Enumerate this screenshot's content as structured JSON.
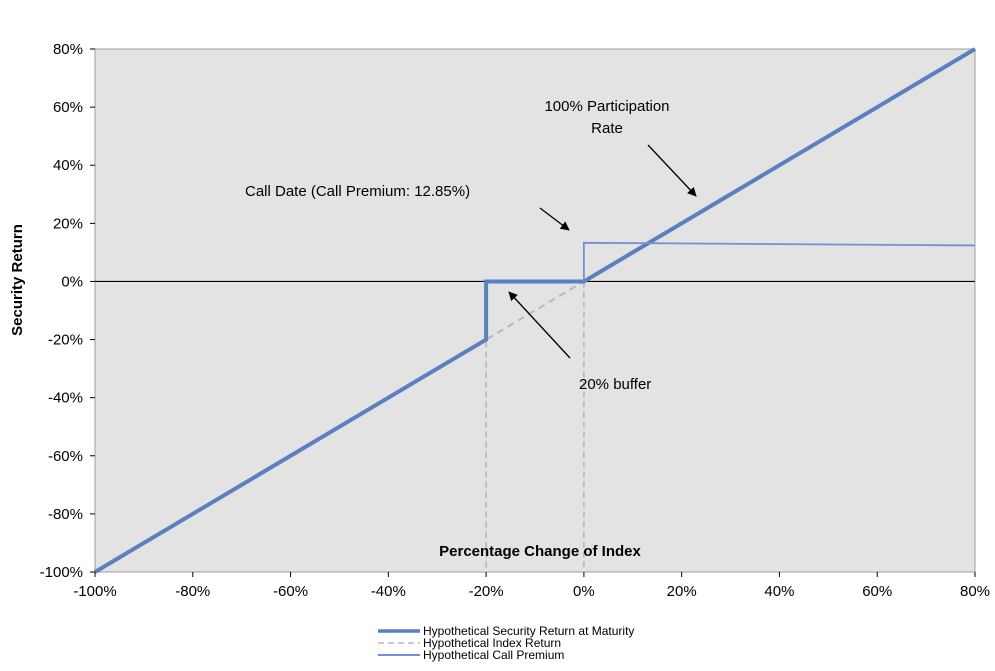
{
  "chart_data": {
    "type": "line",
    "title": "",
    "xlabel": "Percentage Change of Index",
    "ylabel": "Security Return",
    "xlim": [
      -100,
      80
    ],
    "ylim": [
      -100,
      80
    ],
    "x_ticks": [
      "-100%",
      "-80%",
      "-60%",
      "-40%",
      "-20%",
      "0%",
      "20%",
      "40%",
      "60%",
      "80%"
    ],
    "y_ticks": [
      "80%",
      "60%",
      "40%",
      "20%",
      "0%",
      "-20%",
      "-40%",
      "-60%",
      "-80%",
      "-100%"
    ],
    "grid": false,
    "legend_position": "bottom",
    "series": [
      {
        "name": "Hypothetical Security Return at Maturity",
        "color": "#5b7fbf",
        "style": "solid-thick",
        "x": [
          -100,
          -20,
          -20,
          0,
          0,
          80
        ],
        "y": [
          -100,
          -20,
          0,
          0,
          0,
          80
        ]
      },
      {
        "name": "Hypothetical Index Return",
        "color": "#b8b8b8",
        "style": "dashed",
        "x": [
          -100,
          80
        ],
        "y": [
          -100,
          80
        ]
      },
      {
        "name": "Hypothetical Call Premium",
        "color": "#6f93cf",
        "style": "solid-thin",
        "x": [
          0,
          0,
          80
        ],
        "y": [
          0,
          13.3,
          12.4
        ]
      }
    ],
    "annotations": {
      "participation": [
        "100% Participation",
        "Rate"
      ],
      "call_date": "Call Date (Call Premium: 12.85%)",
      "buffer": "20% buffer"
    }
  },
  "colors": {
    "plot_background": "#e3e3e3",
    "zero_line": "#000000",
    "arrow": "#000000"
  }
}
